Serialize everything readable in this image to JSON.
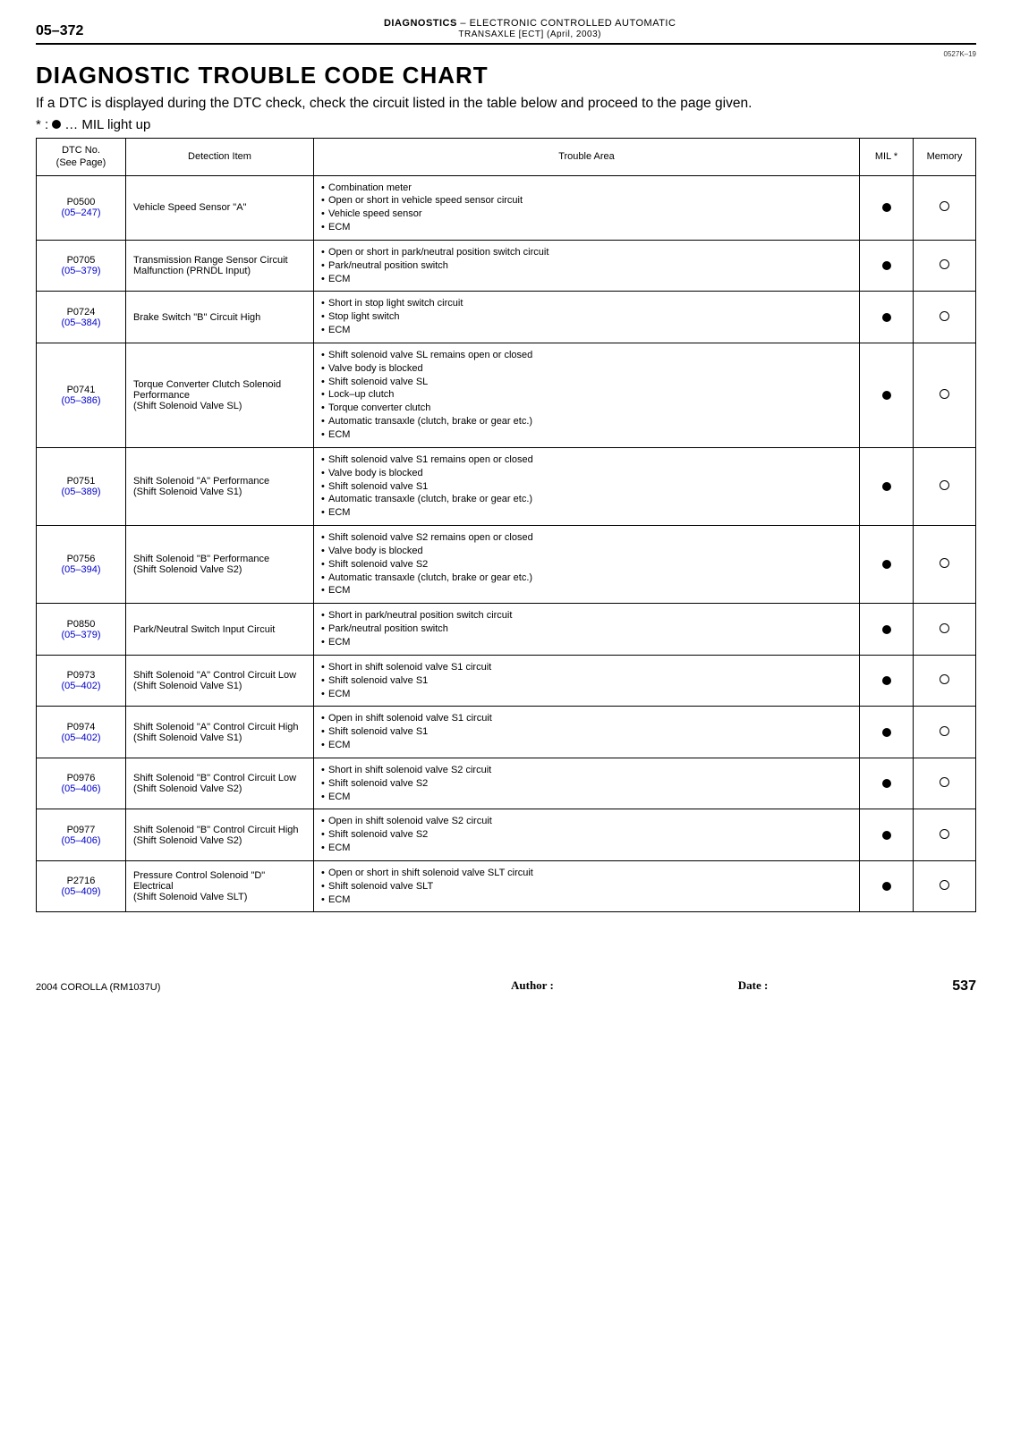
{
  "header": {
    "page_code": "05–372",
    "section": "DIAGNOSTICS",
    "dash": "–",
    "subject_line1": "ELECTRONIC CONTROLLED AUTOMATIC",
    "subject_line2": "TRANSAXLE [ECT] (April, 2003)",
    "doc_ref": "0527K–19"
  },
  "title": "DIAGNOSTIC TROUBLE CODE CHART",
  "intro": "If a DTC is displayed during the DTC check, check the circuit listed in the table below and proceed to the page given.",
  "legend_prefix": "* : ",
  "legend_suffix": " … MIL light up",
  "columns": {
    "dtc": "DTC No.\n(See Page)",
    "detection": "Detection Item",
    "trouble": "Trouble Area",
    "mil": "MIL *",
    "memory": "Memory"
  },
  "link_color": "#0000cc",
  "rows": [
    {
      "code": "P0500",
      "page": "(05–247)",
      "detection": "Vehicle Speed Sensor \"A\"",
      "trouble": [
        "Combination meter",
        "Open or short in vehicle speed sensor circuit",
        "Vehicle speed sensor",
        "ECM"
      ],
      "mil": "dot",
      "memory": "ring"
    },
    {
      "code": "P0705",
      "page": "(05–379)",
      "detection": "Transmission Range Sensor Circuit Malfunction (PRNDL Input)",
      "trouble": [
        "Open or short in park/neutral position switch circuit",
        "Park/neutral position switch",
        "ECM"
      ],
      "mil": "dot",
      "memory": "ring"
    },
    {
      "code": "P0724",
      "page": "(05–384)",
      "detection": "Brake Switch \"B\" Circuit High",
      "trouble": [
        "Short in stop light switch circuit",
        "Stop light switch",
        "ECM"
      ],
      "mil": "dot",
      "memory": "ring"
    },
    {
      "code": "P0741",
      "page": "(05–386)",
      "detection": "Torque Converter Clutch Solenoid Performance\n(Shift Solenoid Valve SL)",
      "trouble": [
        "Shift solenoid valve SL remains open or closed",
        "Valve body is blocked",
        "Shift solenoid valve SL",
        "Lock–up clutch",
        "Torque converter clutch",
        "Automatic transaxle (clutch, brake or gear etc.)",
        "ECM"
      ],
      "mil": "dot",
      "memory": "ring"
    },
    {
      "code": "P0751",
      "page": "(05–389)",
      "detection": "Shift Solenoid \"A\" Performance\n(Shift Solenoid Valve S1)",
      "trouble": [
        "Shift solenoid valve S1 remains open or closed",
        "Valve body is blocked",
        "Shift solenoid valve S1",
        "Automatic transaxle (clutch, brake or gear etc.)",
        "ECM"
      ],
      "mil": "dot",
      "memory": "ring"
    },
    {
      "code": "P0756",
      "page": "(05–394)",
      "detection": "Shift Solenoid \"B\" Performance\n(Shift Solenoid Valve S2)",
      "trouble": [
        "Shift solenoid valve S2 remains open or closed",
        "Valve body is blocked",
        "Shift solenoid valve S2",
        "Automatic transaxle (clutch, brake or gear etc.)",
        "ECM"
      ],
      "mil": "dot",
      "memory": "ring"
    },
    {
      "code": "P0850",
      "page": "(05–379)",
      "detection": "Park/Neutral Switch Input Circuit",
      "trouble": [
        "Short in park/neutral position switch circuit",
        "Park/neutral position switch",
        "ECM"
      ],
      "mil": "dot",
      "memory": "ring"
    },
    {
      "code": "P0973",
      "page": "(05–402)",
      "detection": "Shift Solenoid \"A\" Control Circuit Low (Shift Solenoid Valve S1)",
      "trouble": [
        "Short in shift solenoid valve S1 circuit",
        "Shift solenoid valve S1",
        "ECM"
      ],
      "mil": "dot",
      "memory": "ring"
    },
    {
      "code": "P0974",
      "page": "(05–402)",
      "detection": "Shift Solenoid \"A\" Control Circuit High (Shift Solenoid Valve S1)",
      "trouble": [
        "Open in shift solenoid valve S1 circuit",
        "Shift solenoid valve S1",
        "ECM"
      ],
      "mil": "dot",
      "memory": "ring"
    },
    {
      "code": "P0976",
      "page": "(05–406)",
      "detection": "Shift Solenoid \"B\" Control Circuit Low (Shift Solenoid Valve S2)",
      "trouble": [
        "Short in shift solenoid valve S2 circuit",
        "Shift solenoid valve S2",
        "ECM"
      ],
      "mil": "dot",
      "memory": "ring"
    },
    {
      "code": "P0977",
      "page": "(05–406)",
      "detection": "Shift Solenoid \"B\" Control Circuit High (Shift Solenoid Valve S2)",
      "trouble": [
        "Open in shift solenoid valve S2 circuit",
        "Shift solenoid valve S2",
        "ECM"
      ],
      "mil": "dot",
      "memory": "ring"
    },
    {
      "code": "P2716",
      "page": "(05–409)",
      "detection": "Pressure Control Solenoid \"D\" Electrical\n(Shift Solenoid Valve SLT)",
      "trouble": [
        "Open or short in shift solenoid valve SLT circuit",
        "Shift solenoid valve SLT",
        "ECM"
      ],
      "mil": "dot",
      "memory": "ring"
    }
  ],
  "footer": {
    "model": "2004 COROLLA   (RM1037U)",
    "author_label": "Author :",
    "date_label": "Date :",
    "page_number": "537"
  }
}
